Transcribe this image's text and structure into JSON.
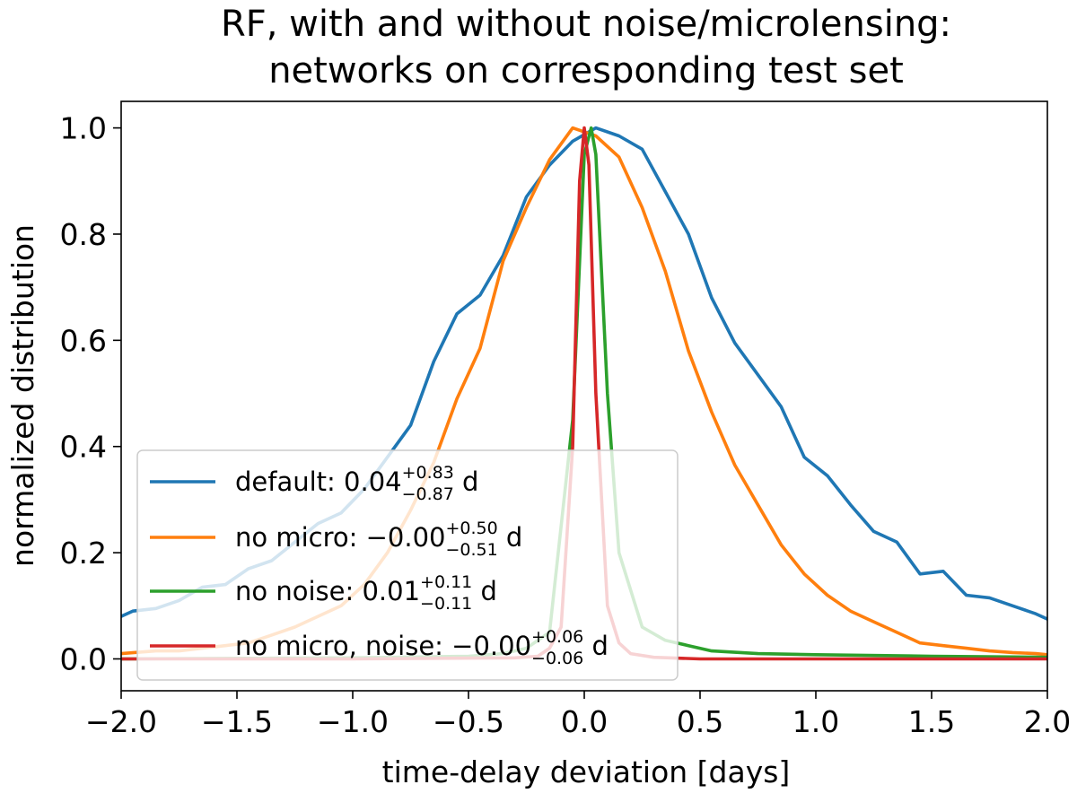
{
  "chart_data": {
    "type": "line",
    "title": [
      "RF, with and without noise/microlensing:",
      "networks on corresponding test set"
    ],
    "xlabel": "time-delay deviation [days]",
    "ylabel": "normalized distribution",
    "xlim": [
      -2.0,
      2.0
    ],
    "ylim": [
      -0.06,
      1.05
    ],
    "xticks": [
      -2.0,
      -1.5,
      -1.0,
      -0.5,
      0.0,
      0.5,
      1.0,
      1.5,
      2.0
    ],
    "xtick_labels": [
      "−2.0",
      "−1.5",
      "−1.0",
      "−0.5",
      "0.0",
      "0.5",
      "1.0",
      "1.5",
      "2.0"
    ],
    "yticks": [
      0.0,
      0.2,
      0.4,
      0.6,
      0.8,
      1.0
    ],
    "ytick_labels": [
      "0.0",
      "0.2",
      "0.4",
      "0.6",
      "0.8",
      "1.0"
    ],
    "grid": false,
    "legend_position": "lower-left",
    "series": [
      {
        "name": "default",
        "legend": {
          "prefix": "default: ",
          "value": "0.04",
          "sup": "+0.83",
          "sub": "−0.87",
          "suffix": " d"
        },
        "color": "#1f77b4",
        "x": [
          -2.0,
          -1.95,
          -1.85,
          -1.75,
          -1.65,
          -1.55,
          -1.45,
          -1.35,
          -1.25,
          -1.15,
          -1.05,
          -0.95,
          -0.85,
          -0.75,
          -0.65,
          -0.55,
          -0.45,
          -0.35,
          -0.25,
          -0.15,
          -0.05,
          0.05,
          0.15,
          0.25,
          0.35,
          0.45,
          0.55,
          0.65,
          0.75,
          0.85,
          0.95,
          1.05,
          1.15,
          1.25,
          1.35,
          1.45,
          1.55,
          1.65,
          1.75,
          1.85,
          1.95,
          2.0
        ],
        "y": [
          0.08,
          0.09,
          0.095,
          0.11,
          0.135,
          0.14,
          0.17,
          0.185,
          0.22,
          0.255,
          0.275,
          0.32,
          0.38,
          0.44,
          0.56,
          0.65,
          0.685,
          0.76,
          0.87,
          0.93,
          0.975,
          1.0,
          0.985,
          0.96,
          0.88,
          0.8,
          0.68,
          0.595,
          0.535,
          0.475,
          0.38,
          0.345,
          0.29,
          0.24,
          0.22,
          0.16,
          0.165,
          0.12,
          0.115,
          0.1,
          0.085,
          0.075
        ]
      },
      {
        "name": "no micro",
        "legend": {
          "prefix": "no micro: ",
          "value": "−0.00",
          "sup": "+0.50",
          "sub": "−0.51",
          "suffix": " d"
        },
        "color": "#ff7f0e",
        "x": [
          -2.0,
          -1.85,
          -1.75,
          -1.65,
          -1.55,
          -1.45,
          -1.35,
          -1.25,
          -1.15,
          -1.05,
          -0.95,
          -0.85,
          -0.75,
          -0.65,
          -0.55,
          -0.45,
          -0.35,
          -0.25,
          -0.15,
          -0.05,
          0.05,
          0.15,
          0.25,
          0.35,
          0.45,
          0.55,
          0.65,
          0.75,
          0.85,
          0.95,
          1.05,
          1.15,
          1.25,
          1.35,
          1.45,
          1.55,
          1.65,
          1.75,
          1.85,
          1.95,
          2.0
        ],
        "y": [
          0.01,
          0.015,
          0.015,
          0.02,
          0.025,
          0.03,
          0.045,
          0.06,
          0.08,
          0.1,
          0.14,
          0.2,
          0.28,
          0.37,
          0.49,
          0.585,
          0.75,
          0.85,
          0.94,
          1.0,
          0.985,
          0.945,
          0.85,
          0.73,
          0.58,
          0.465,
          0.365,
          0.29,
          0.215,
          0.16,
          0.12,
          0.09,
          0.07,
          0.05,
          0.03,
          0.025,
          0.02,
          0.015,
          0.012,
          0.01,
          0.008
        ]
      },
      {
        "name": "no noise",
        "legend": {
          "prefix": "no noise: ",
          "value": "0.01",
          "sup": "+0.11",
          "sub": "−0.11",
          "suffix": " d"
        },
        "color": "#2ca02c",
        "x": [
          -2.0,
          -1.0,
          -0.5,
          -0.35,
          -0.25,
          -0.15,
          -0.05,
          0.0,
          0.03,
          0.05,
          0.1,
          0.15,
          0.25,
          0.35,
          0.45,
          0.55,
          0.75,
          1.0,
          1.5,
          2.0
        ],
        "y": [
          0.0,
          0.002,
          0.005,
          0.01,
          0.02,
          0.05,
          0.45,
          0.95,
          1.0,
          0.95,
          0.5,
          0.2,
          0.06,
          0.035,
          0.025,
          0.015,
          0.01,
          0.008,
          0.005,
          0.003
        ]
      },
      {
        "name": "no micro, noise",
        "legend": {
          "prefix": "no micro, noise: ",
          "value": "−0.00",
          "sup": "+0.06",
          "sub": "−0.06",
          "suffix": " d"
        },
        "color": "#d62728",
        "x": [
          -2.0,
          -1.0,
          -0.3,
          -0.2,
          -0.15,
          -0.1,
          -0.05,
          -0.02,
          0.0,
          0.02,
          0.05,
          0.1,
          0.15,
          0.2,
          0.3,
          0.5,
          1.0,
          2.0
        ],
        "y": [
          0.0,
          0.0,
          0.002,
          0.005,
          0.02,
          0.06,
          0.4,
          0.9,
          1.0,
          0.93,
          0.5,
          0.1,
          0.03,
          0.01,
          0.003,
          0.0,
          0.0,
          0.0
        ]
      }
    ]
  }
}
